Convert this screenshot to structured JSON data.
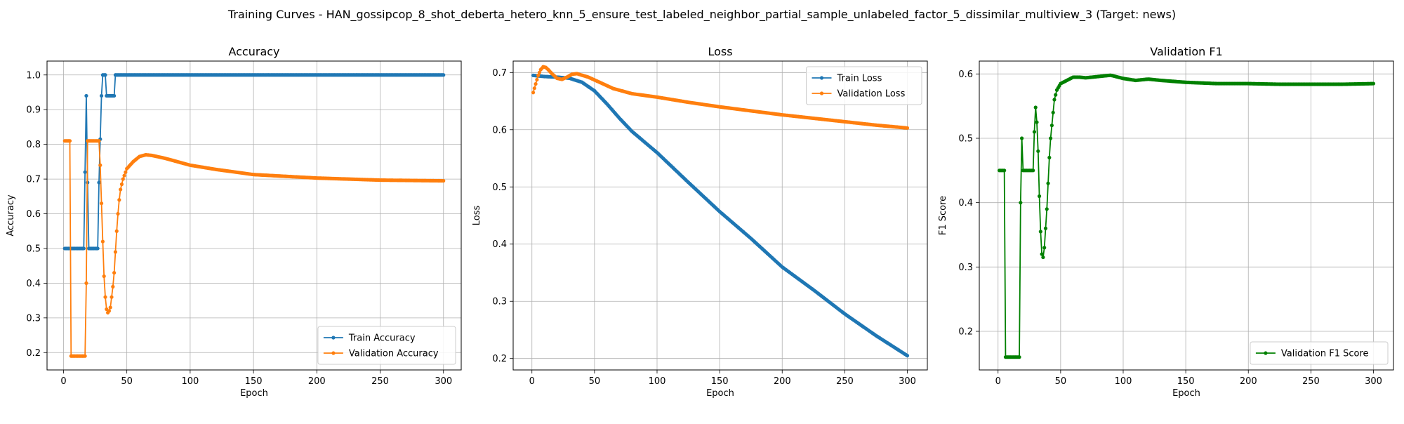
{
  "figure": {
    "suptitle": "Training Curves - HAN_gossipcop_8_shot_deberta_hetero_knn_5_ensure_test_labeled_neighbor_partial_sample_unlabeled_factor_5_dissimilar_multiview_3 (Target: news)"
  },
  "colors": {
    "blue": "#1f77b4",
    "orange": "#ff7f0e",
    "green": "#008000",
    "grid": "#b0b0b0"
  },
  "chart_data": [
    {
      "type": "line",
      "title": "Accuracy",
      "xlabel": "Epoch",
      "ylabel": "Accuracy",
      "xlim": [
        -13,
        314
      ],
      "ylim": [
        0.15,
        1.04
      ],
      "xticks": [
        0,
        50,
        100,
        150,
        200,
        250,
        300
      ],
      "yticks": [
        0.2,
        0.3,
        0.4,
        0.5,
        0.6,
        0.7,
        0.8,
        0.9,
        1.0
      ],
      "ytick_labels": [
        "0.2",
        "0.3",
        "0.4",
        "0.5",
        "0.6",
        "0.7",
        "0.8",
        "0.9",
        "1.0"
      ],
      "grid": true,
      "legend_position": "lower-right",
      "series": [
        {
          "name": "Train Accuracy",
          "color": "blue",
          "points": [
            [
              1,
              0.5
            ],
            [
              16,
              0.5
            ],
            [
              18,
              0.94
            ],
            [
              19,
              0.69
            ],
            [
              20,
              0.5
            ],
            [
              27,
              0.5
            ],
            [
              28,
              0.69
            ],
            [
              30,
              0.94
            ],
            [
              31,
              1.0
            ],
            [
              33,
              1.0
            ],
            [
              34,
              0.94
            ],
            [
              40,
              0.94
            ],
            [
              41,
              1.0
            ],
            [
              300,
              1.0
            ]
          ]
        },
        {
          "name": "Validation Accuracy",
          "color": "orange",
          "points": [
            [
              1,
              0.81
            ],
            [
              5,
              0.81
            ],
            [
              6,
              0.19
            ],
            [
              17,
              0.19
            ],
            [
              18,
              0.4
            ],
            [
              19,
              0.81
            ],
            [
              28,
              0.81
            ],
            [
              29,
              0.74
            ],
            [
              30,
              0.63
            ],
            [
              31,
              0.52
            ],
            [
              32,
              0.42
            ],
            [
              33,
              0.36
            ],
            [
              34,
              0.325
            ],
            [
              35,
              0.315
            ],
            [
              36,
              0.32
            ],
            [
              37,
              0.33
            ],
            [
              38,
              0.36
            ],
            [
              39,
              0.39
            ],
            [
              40,
              0.43
            ],
            [
              41,
              0.49
            ],
            [
              42,
              0.55
            ],
            [
              43,
              0.6
            ],
            [
              44,
              0.64
            ],
            [
              45,
              0.67
            ],
            [
              47,
              0.7
            ],
            [
              50,
              0.73
            ],
            [
              55,
              0.75
            ],
            [
              60,
              0.765
            ],
            [
              65,
              0.77
            ],
            [
              70,
              0.768
            ],
            [
              80,
              0.76
            ],
            [
              90,
              0.75
            ],
            [
              100,
              0.74
            ],
            [
              120,
              0.728
            ],
            [
              150,
              0.713
            ],
            [
              200,
              0.703
            ],
            [
              250,
              0.697
            ],
            [
              300,
              0.695
            ]
          ]
        }
      ]
    },
    {
      "type": "line",
      "title": "Loss",
      "xlabel": "Epoch",
      "ylabel": "Loss",
      "xlim": [
        -15,
        316
      ],
      "ylim": [
        0.18,
        0.72
      ],
      "xticks": [
        0,
        50,
        100,
        150,
        200,
        250,
        300
      ],
      "yticks": [
        0.2,
        0.3,
        0.4,
        0.5,
        0.6,
        0.7
      ],
      "ytick_labels": [
        "0.2",
        "0.3",
        "0.4",
        "0.5",
        "0.6",
        "0.7"
      ],
      "grid": true,
      "legend_position": "upper-right",
      "series": [
        {
          "name": "Train Loss",
          "color": "blue",
          "points": [
            [
              1,
              0.695
            ],
            [
              10,
              0.693
            ],
            [
              20,
              0.692
            ],
            [
              30,
              0.69
            ],
            [
              40,
              0.683
            ],
            [
              50,
              0.668
            ],
            [
              60,
              0.645
            ],
            [
              70,
              0.62
            ],
            [
              80,
              0.597
            ],
            [
              100,
              0.56
            ],
            [
              125,
              0.508
            ],
            [
              150,
              0.457
            ],
            [
              175,
              0.41
            ],
            [
              200,
              0.36
            ],
            [
              225,
              0.32
            ],
            [
              250,
              0.278
            ],
            [
              275,
              0.24
            ],
            [
              300,
              0.205
            ]
          ]
        },
        {
          "name": "Validation Loss",
          "color": "orange",
          "points": [
            [
              1,
              0.665
            ],
            [
              3,
              0.68
            ],
            [
              5,
              0.695
            ],
            [
              7,
              0.705
            ],
            [
              9,
              0.71
            ],
            [
              11,
              0.709
            ],
            [
              13,
              0.705
            ],
            [
              16,
              0.698
            ],
            [
              20,
              0.69
            ],
            [
              24,
              0.688
            ],
            [
              28,
              0.692
            ],
            [
              32,
              0.697
            ],
            [
              36,
              0.698
            ],
            [
              45,
              0.692
            ],
            [
              55,
              0.682
            ],
            [
              65,
              0.672
            ],
            [
              80,
              0.663
            ],
            [
              100,
              0.657
            ],
            [
              125,
              0.648
            ],
            [
              150,
              0.64
            ],
            [
              175,
              0.633
            ],
            [
              200,
              0.626
            ],
            [
              225,
              0.62
            ],
            [
              250,
              0.614
            ],
            [
              275,
              0.608
            ],
            [
              300,
              0.603
            ]
          ]
        }
      ]
    },
    {
      "type": "line",
      "title": "Validation F1",
      "xlabel": "Epoch",
      "ylabel": "F1 Score",
      "xlim": [
        -15,
        316
      ],
      "ylim": [
        0.14,
        0.62
      ],
      "xticks": [
        0,
        50,
        100,
        150,
        200,
        250,
        300
      ],
      "yticks": [
        0.2,
        0.3,
        0.4,
        0.5,
        0.6
      ],
      "ytick_labels": [
        "0.2",
        "0.3",
        "0.4",
        "0.5",
        "0.6"
      ],
      "grid": true,
      "legend_position": "lower-right",
      "series": [
        {
          "name": "Validation F1 Score",
          "color": "green",
          "points": [
            [
              1,
              0.45
            ],
            [
              5,
              0.45
            ],
            [
              6,
              0.16
            ],
            [
              17,
              0.16
            ],
            [
              18,
              0.4
            ],
            [
              19,
              0.5
            ],
            [
              20,
              0.45
            ],
            [
              28,
              0.45
            ],
            [
              29,
              0.51
            ],
            [
              30,
              0.548
            ],
            [
              31,
              0.525
            ],
            [
              32,
              0.48
            ],
            [
              33,
              0.41
            ],
            [
              34,
              0.355
            ],
            [
              35,
              0.32
            ],
            [
              36,
              0.315
            ],
            [
              37,
              0.33
            ],
            [
              38,
              0.36
            ],
            [
              39,
              0.39
            ],
            [
              40,
              0.43
            ],
            [
              41,
              0.47
            ],
            [
              42,
              0.5
            ],
            [
              43,
              0.52
            ],
            [
              44,
              0.54
            ],
            [
              45,
              0.56
            ],
            [
              47,
              0.575
            ],
            [
              50,
              0.585
            ],
            [
              55,
              0.59
            ],
            [
              60,
              0.595
            ],
            [
              65,
              0.595
            ],
            [
              70,
              0.594
            ],
            [
              80,
              0.596
            ],
            [
              90,
              0.598
            ],
            [
              100,
              0.593
            ],
            [
              110,
              0.59
            ],
            [
              120,
              0.592
            ],
            [
              130,
              0.59
            ],
            [
              150,
              0.587
            ],
            [
              175,
              0.585
            ],
            [
              200,
              0.585
            ],
            [
              225,
              0.584
            ],
            [
              250,
              0.584
            ],
            [
              275,
              0.584
            ],
            [
              300,
              0.585
            ]
          ]
        }
      ]
    }
  ]
}
